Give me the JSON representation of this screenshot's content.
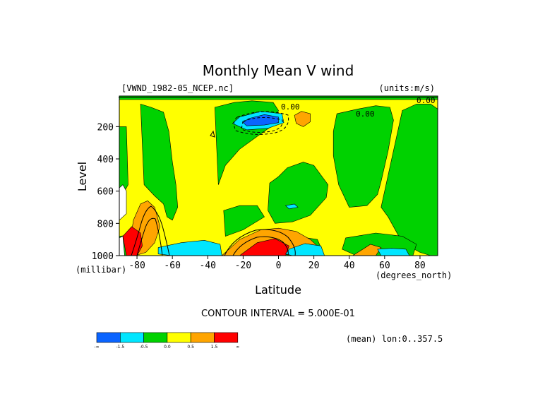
{
  "chart_data": {
    "type": "heatmap",
    "title": "Monthly Mean V wind",
    "dataset_label": "[VWND_1982-05_NCEP.nc]",
    "units_label": "(units:m/s)",
    "xlabel": "Latitude",
    "xunits": "(degrees_north)",
    "ylabel": "Level",
    "yunits": "(millibar)",
    "xlim": [
      -90,
      90
    ],
    "ylim": [
      1000,
      10
    ],
    "x_ticks": [
      -80,
      -60,
      -40,
      -20,
      0,
      20,
      40,
      60,
      80
    ],
    "x_tick_labels": [
      "-80",
      "-60",
      "-40",
      "-20",
      "0",
      "20",
      "40",
      "60",
      "80"
    ],
    "y_ticks": [
      200,
      400,
      600,
      800,
      1000
    ],
    "y_tick_labels": [
      "200",
      "400",
      "600",
      "800",
      "1000"
    ],
    "contour_interval_text": "CONTOUR INTERVAL = 5.000E-01",
    "mean_text": "(mean) lon:0..357.5",
    "contour_labels": [
      "0.00",
      "0.00",
      "0.00"
    ],
    "colorbar": {
      "colors": [
        "#0a64ff",
        "#00e6ff",
        "#00d200",
        "#ffff00",
        "#ffa500",
        "#ff0000"
      ],
      "labels": [
        "-∞",
        "-1.5",
        "-0.5",
        "0.0",
        "0.5",
        "1.5",
        "∞"
      ]
    },
    "regions": [
      {
        "fill": "#ffff00",
        "lat": [
          -90,
          90,
          90,
          -90
        ],
        "lev": [
          10,
          10,
          1000,
          1000
        ]
      },
      {
        "fill": "#00d200",
        "lat": [
          -78,
          -72,
          -65,
          -62,
          -60,
          -58,
          -57,
          -60,
          -63,
          -65,
          -70,
          -76
        ],
        "lev": [
          60,
          80,
          110,
          230,
          420,
          560,
          700,
          780,
          760,
          680,
          630,
          560
        ]
      },
      {
        "fill": "#00d200",
        "lat": [
          -90,
          -86,
          -85,
          -88,
          -90
        ],
        "lev": [
          200,
          200,
          560,
          620,
          640
        ]
      },
      {
        "fill": "#00d200",
        "lat": [
          -36,
          -25,
          -15,
          -3,
          0,
          -3,
          -12,
          -22,
          -30,
          -34
        ],
        "lev": [
          80,
          50,
          40,
          50,
          100,
          190,
          260,
          340,
          440,
          560
        ]
      },
      {
        "fill": "#00d200",
        "lat": [
          -31,
          -22,
          -12,
          -8,
          -20,
          -30
        ],
        "lev": [
          720,
          690,
          690,
          760,
          840,
          880
        ]
      },
      {
        "fill": "#00d200",
        "lat": [
          -5,
          0,
          5,
          14,
          20,
          24,
          28,
          27,
          18,
          8,
          -2,
          -6
        ],
        "lev": [
          550,
          510,
          455,
          420,
          440,
          500,
          560,
          640,
          750,
          790,
          800,
          720
        ]
      },
      {
        "fill": "#00d200",
        "lat": [
          -15,
          10,
          22,
          24,
          22,
          14,
          4,
          -8,
          -15
        ],
        "lev": [
          900,
          880,
          900,
          950,
          1000,
          1000,
          1000,
          1000,
          950
        ]
      },
      {
        "fill": "#00d200",
        "lat": [
          -90,
          -82,
          -77,
          -80,
          -88,
          -90
        ],
        "lev": [
          880,
          870,
          920,
          1000,
          1000,
          960
        ]
      },
      {
        "fill": "#00d200",
        "lat": [
          33,
          45,
          55,
          63,
          65,
          62,
          58,
          56,
          50,
          40,
          34,
          31,
          31
        ],
        "lev": [
          120,
          90,
          70,
          80,
          160,
          350,
          540,
          620,
          690,
          700,
          560,
          380,
          230
        ]
      },
      {
        "fill": "#00d200",
        "lat": [
          70,
          78,
          86,
          90,
          90,
          86,
          80,
          70,
          62,
          58
        ],
        "lev": [
          100,
          60,
          60,
          90,
          1000,
          1000,
          980,
          920,
          760,
          700
        ]
      },
      {
        "fill": "#00d200",
        "lat": [
          38,
          55,
          70,
          78,
          76,
          60,
          44,
          36
        ],
        "lev": [
          890,
          860,
          880,
          930,
          1000,
          1000,
          1000,
          960
        ]
      },
      {
        "fill": "#00d200",
        "lat": [
          -90,
          90,
          90,
          -90
        ],
        "lev": [
          10,
          10,
          32,
          32
        ]
      },
      {
        "fill": "#ffa500",
        "lat": [
          -82,
          -78,
          -74,
          -70,
          -67,
          -70,
          -75,
          -81,
          -84
        ],
        "lev": [
          780,
          680,
          660,
          700,
          820,
          920,
          980,
          1000,
          920
        ]
      },
      {
        "fill": "#ffa500",
        "lat": [
          -32,
          -22,
          -10,
          0,
          10,
          18,
          22,
          14,
          0,
          -14,
          -26,
          -32
        ],
        "lev": [
          1000,
          900,
          840,
          830,
          850,
          900,
          940,
          980,
          1000,
          1000,
          1000,
          1000
        ]
      },
      {
        "fill": "#ffa500",
        "lat": [
          9,
          13,
          18,
          18,
          14,
          10
        ],
        "lev": [
          130,
          105,
          120,
          170,
          200,
          180
        ]
      },
      {
        "fill": "#ffa500",
        "lat": [
          42,
          52,
          58,
          55,
          46,
          40
        ],
        "lev": [
          1000,
          930,
          950,
          1000,
          1000,
          1000
        ]
      },
      {
        "fill": "#ff0000",
        "lat": [
          -22,
          -12,
          -2,
          6,
          4,
          -8,
          -20
        ],
        "lev": [
          1000,
          920,
          895,
          940,
          1000,
          1000,
          1000
        ]
      },
      {
        "fill": "#ff0000",
        "lat": [
          -88,
          -83,
          -78,
          -77,
          -80,
          -86
        ],
        "lev": [
          880,
          820,
          860,
          940,
          1000,
          1000
        ]
      },
      {
        "fill": "#ffffff",
        "lat": [
          -90,
          -88,
          -86,
          -86,
          -88,
          -90
        ],
        "lev": [
          580,
          560,
          600,
          740,
          760,
          780
        ]
      },
      {
        "fill": "#ffffff",
        "lat": [
          -90,
          -88,
          -87,
          -90
        ],
        "lev": [
          890,
          880,
          1000,
          1000
        ]
      },
      {
        "fill": "#00e6ff",
        "lat": [
          -22,
          -10,
          2,
          3,
          -6,
          -18,
          -26
        ],
        "lev": [
          140,
          105,
          120,
          175,
          210,
          220,
          180
        ]
      },
      {
        "fill": "#0a64ff",
        "lat": [
          -17,
          -8,
          0,
          0,
          -8,
          -18,
          -20
        ],
        "lev": [
          150,
          125,
          140,
          175,
          190,
          195,
          175
        ]
      },
      {
        "fill": "#00e6ff",
        "lat": [
          -68,
          -55,
          -42,
          -33,
          -32,
          -44,
          -60,
          -68
        ],
        "lev": [
          950,
          920,
          905,
          930,
          1000,
          1000,
          1000,
          990
        ]
      },
      {
        "fill": "#00e6ff",
        "lat": [
          6,
          15,
          24,
          26,
          18,
          8,
          4
        ],
        "lev": [
          960,
          925,
          940,
          1000,
          1000,
          1000,
          990
        ]
      },
      {
        "fill": "#00e6ff",
        "lat": [
          56,
          64,
          72,
          74,
          66,
          58
        ],
        "lev": [
          960,
          955,
          960,
          1000,
          1000,
          1000
        ]
      },
      {
        "fill": "#00e6ff",
        "lat": [
          4,
          9,
          11,
          6
        ],
        "lev": [
          690,
          680,
          700,
          710
        ]
      }
    ]
  }
}
